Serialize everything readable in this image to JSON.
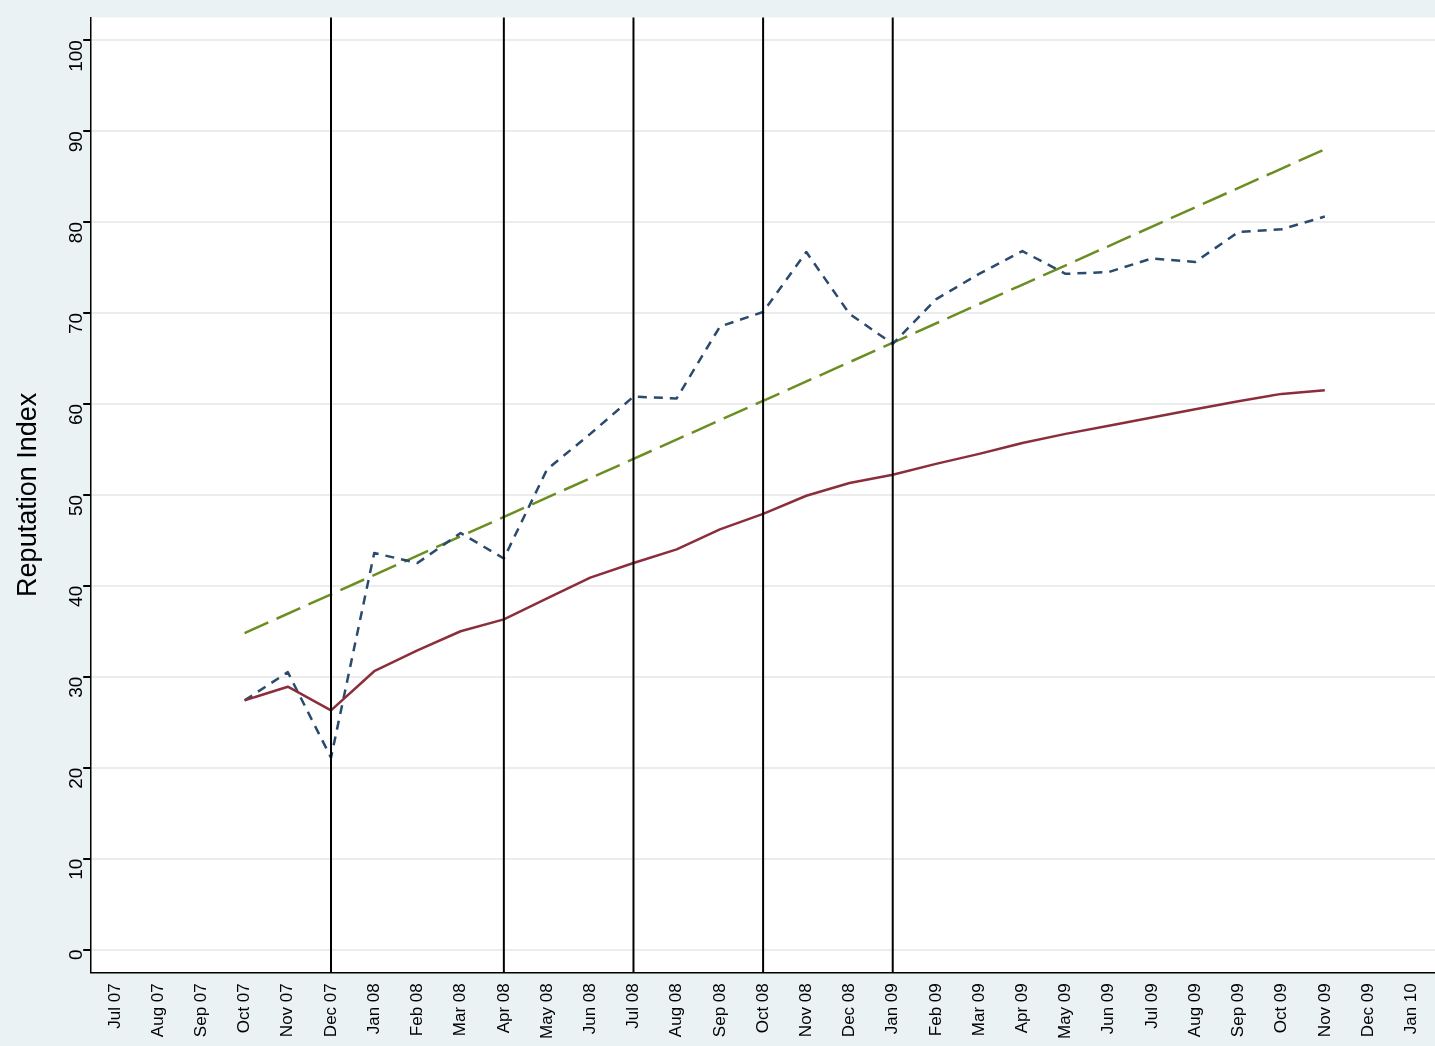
{
  "chart_data": {
    "type": "line",
    "ylabel": "Reputation Index",
    "categories": [
      "Jul 07",
      "Aug 07",
      "Sep 07",
      "Oct 07",
      "Nov 07",
      "Dec 07",
      "Jan 08",
      "Feb 08",
      "Mar 08",
      "Apr 08",
      "May 08",
      "Jun 08",
      "Jul 08",
      "Aug 08",
      "Sep 08",
      "Oct 08",
      "Nov 08",
      "Dec 08",
      "Jan 09",
      "Feb 09",
      "Mar 09",
      "Apr 09",
      "May 09",
      "Jun 09",
      "Jul 09",
      "Aug 09",
      "Sep 09",
      "Oct 09",
      "Nov 09",
      "Dec 09",
      "Jan 10"
    ],
    "series": [
      {
        "color": "#8b2e3c",
        "line_style": "solid",
        "values": [
          null,
          null,
          null,
          27.4,
          28.9,
          26.3,
          30.6,
          32.9,
          35.0,
          36.3,
          38.6,
          40.9,
          42.5,
          44.0,
          46.2,
          47.9,
          49.9,
          51.3,
          52.2,
          53.4,
          54.5,
          55.7,
          56.7,
          57.6,
          58.5,
          59.4,
          60.3,
          61.1,
          61.5,
          null,
          null
        ]
      },
      {
        "color": "#2a4a6e",
        "line_style": "dashed",
        "values": [
          null,
          null,
          null,
          27.4,
          30.5,
          21.1,
          43.6,
          42.5,
          45.8,
          43.0,
          52.8,
          56.7,
          60.8,
          60.6,
          68.5,
          70.1,
          76.7,
          69.9,
          66.6,
          71.5,
          74.3,
          76.8,
          74.3,
          74.5,
          76.0,
          75.6,
          78.9,
          79.2,
          80.6,
          null,
          null
        ]
      },
      {
        "color": "#6b8e23",
        "line_style": "longdash",
        "x": [
          "Oct 07",
          "Nov 09"
        ],
        "values": [
          34.8,
          88.0
        ]
      }
    ],
    "ylim": [
      -2.5,
      102.5
    ],
    "yticks": [
      0,
      10,
      20,
      30,
      40,
      50,
      60,
      70,
      80,
      90,
      100
    ],
    "grid": "y",
    "marker": "none",
    "ref_lines": [
      {
        "axis": "x",
        "value": "Dec 07",
        "color": "#000000"
      },
      {
        "axis": "x",
        "value": "Apr 08",
        "color": "#000000"
      },
      {
        "axis": "x",
        "value": "Jul 08",
        "color": "#000000"
      },
      {
        "axis": "x",
        "value": "Oct 08",
        "color": "#000000"
      },
      {
        "axis": "x",
        "value": "Jan 09",
        "color": "#000000"
      }
    ]
  }
}
